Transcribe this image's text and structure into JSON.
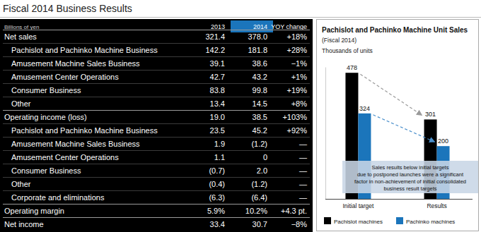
{
  "title": "Fiscal 2014 Business Results",
  "table": {
    "unit_label": "Billions of yen",
    "columns": [
      "2013",
      "2014",
      "YOY change"
    ],
    "groups": [
      {
        "label": "Net sales",
        "cells": [
          "321.4",
          "378.0",
          "+18%"
        ],
        "items": [
          {
            "label": "Pachislot and Pachinko Machine Business",
            "cells": [
              "142.2",
              "181.8",
              "+28%"
            ]
          },
          {
            "label": "Amusement Machine Sales Business",
            "cells": [
              "39.1",
              "38.6",
              "−1%"
            ]
          },
          {
            "label": "Amusement Center Operations",
            "cells": [
              "42.7",
              "43.2",
              "+1%"
            ]
          },
          {
            "label": "Consumer Business",
            "cells": [
              "83.8",
              "99.8",
              "+19%"
            ]
          },
          {
            "label": "Other",
            "cells": [
              "13.4",
              "14.5",
              "+8%"
            ]
          }
        ]
      },
      {
        "label": "Operating income (loss)",
        "cells": [
          "19.0",
          "38.5",
          "+103%"
        ],
        "items": [
          {
            "label": "Pachislot and Pachinko Machine Business",
            "cells": [
              "23.5",
              "45.2",
              "+92%"
            ]
          },
          {
            "label": "Amusement Machine Sales Business",
            "cells": [
              "1.9",
              "(1.2)",
              "—"
            ]
          },
          {
            "label": "Amusement Center Operations",
            "cells": [
              "1.1",
              "0",
              "—"
            ]
          },
          {
            "label": "Consumer Business",
            "cells": [
              "(0.7)",
              "2.0",
              "—"
            ]
          },
          {
            "label": "Other",
            "cells": [
              "(0.4)",
              "(1.2)",
              "—"
            ]
          },
          {
            "label": "Corporate and eliminations",
            "cells": [
              "(6.3)",
              "(6.4)",
              "—"
            ]
          }
        ]
      },
      {
        "label": "Operating margin",
        "cells": [
          "5.9%",
          "10.2%",
          "+4.3 pt."
        ],
        "items": []
      },
      {
        "label": "Net income",
        "cells": [
          "33.4",
          "30.7",
          "−8%"
        ],
        "items": []
      }
    ]
  },
  "chart_data": {
    "type": "bar",
    "title": "Pachislot and Pachinko Machine Unit Sales",
    "subtitle": "(Fiscal 2014)",
    "y_label": "Thousands of units",
    "categories": [
      "Initial target",
      "Results"
    ],
    "series": [
      {
        "name": "Pachislot machines",
        "color": "#000000",
        "values": [
          478,
          301
        ]
      },
      {
        "name": "Pachinko machines",
        "color": "#1b75bb",
        "values": [
          324,
          200
        ]
      }
    ],
    "ylim": [
      0,
      500
    ],
    "tick_labels": "x",
    "data_labels": true,
    "legend": "bottom",
    "annotation": [
      "Sales results below initial targets",
      "due to postponed launches were a significant",
      "factor in non-achievement of initial consolidated",
      "business result targets"
    ]
  }
}
